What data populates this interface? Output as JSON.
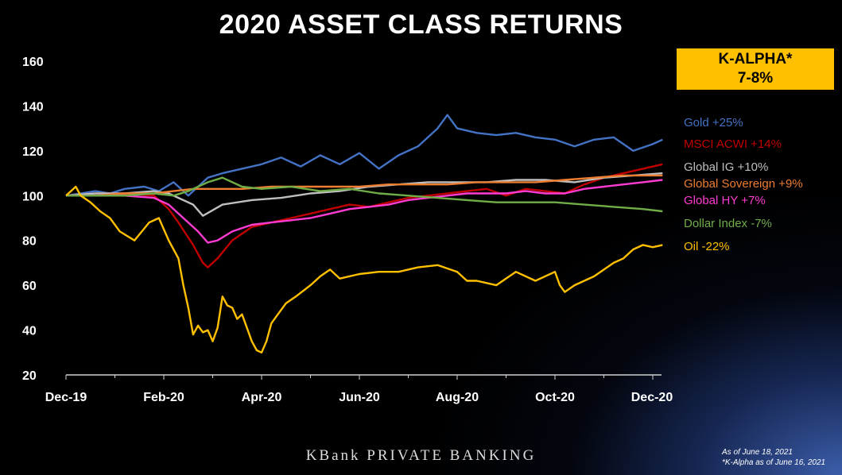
{
  "title": "2020 ASSET CLASS RETURNS",
  "kalpha": {
    "line1": "K-ALPHA*",
    "line2": "7-8%",
    "color": "#FFC000"
  },
  "footer": {
    "brand": "KBank PRIVATE BANKING",
    "note1": "As of June 18, 2021",
    "note2": "*K-Alpha as of June 16, 2021"
  },
  "chart_data": {
    "type": "line",
    "title": "2020 ASSET CLASS RETURNS",
    "xlabel": "",
    "ylabel": "",
    "x_ticks": [
      "Dec-19",
      "Feb-20",
      "Apr-20",
      "Jun-20",
      "Aug-20",
      "Oct-20",
      "Dec-20"
    ],
    "ylim": [
      20,
      160
    ],
    "y_ticks": [
      20,
      40,
      60,
      80,
      100,
      120,
      140,
      160
    ],
    "grid": false,
    "legend_position": "right",
    "series": [
      {
        "name": "Gold +25%",
        "color": "#4472C4",
        "x": [
          0,
          0.15,
          0.3,
          0.45,
          0.6,
          0.8,
          0.95,
          1.1,
          1.25,
          1.45,
          1.6,
          1.8,
          2,
          2.2,
          2.4,
          2.6,
          2.8,
          3,
          3.2,
          3.4,
          3.6,
          3.8,
          3.9,
          4,
          4.2,
          4.4,
          4.6,
          4.8,
          5,
          5.2,
          5.4,
          5.6,
          5.8,
          6,
          6.1
        ],
        "y": [
          100,
          101,
          102,
          101,
          103,
          104,
          102,
          106,
          100,
          108,
          110,
          112,
          114,
          117,
          113,
          118,
          114,
          119,
          112,
          118,
          122,
          130,
          136,
          130,
          128,
          127,
          128,
          126,
          125,
          122,
          125,
          126,
          120,
          123,
          125
        ]
      },
      {
        "name": "MSCI ACWI +14%",
        "color": "#C00000",
        "x": [
          0,
          0.3,
          0.6,
          0.9,
          1.05,
          1.15,
          1.3,
          1.4,
          1.45,
          1.55,
          1.7,
          1.9,
          2.1,
          2.3,
          2.5,
          2.7,
          2.9,
          3.1,
          3.3,
          3.5,
          3.7,
          3.9,
          4.1,
          4.3,
          4.5,
          4.7,
          4.9,
          5.1,
          5.3,
          5.5,
          5.7,
          5.9,
          6.1
        ],
        "y": [
          100,
          101,
          101,
          100,
          94,
          88,
          78,
          70,
          68,
          72,
          80,
          86,
          88,
          90,
          92,
          94,
          96,
          95,
          97,
          99,
          100,
          101,
          102,
          103,
          100,
          103,
          102,
          101,
          105,
          108,
          110,
          112,
          114
        ]
      },
      {
        "name": "Global IG +10%",
        "color": "#BFBFBF",
        "x": [
          0,
          0.3,
          0.6,
          0.9,
          1.05,
          1.15,
          1.3,
          1.4,
          1.6,
          1.9,
          2.2,
          2.5,
          2.8,
          3.1,
          3.4,
          3.7,
          4,
          4.3,
          4.6,
          4.9,
          5.2,
          5.5,
          5.8,
          6.1
        ],
        "y": [
          100,
          101,
          101,
          102,
          101,
          99,
          96,
          91,
          96,
          98,
          99,
          101,
          102,
          104,
          105,
          106,
          106,
          106,
          107,
          107,
          106,
          108,
          109,
          110
        ]
      },
      {
        "name": "Global Sovereign +9%",
        "color": "#ED7D31",
        "x": [
          0,
          0.3,
          0.6,
          0.9,
          1.1,
          1.3,
          1.5,
          1.8,
          2.1,
          2.4,
          2.7,
          3,
          3.3,
          3.6,
          3.9,
          4.2,
          4.5,
          4.8,
          5.1,
          5.4,
          5.7,
          6.1
        ],
        "y": [
          100,
          100,
          101,
          101,
          102,
          103,
          103,
          103,
          104,
          104,
          104,
          104,
          105,
          105,
          105,
          106,
          106,
          106,
          107,
          108,
          109,
          109
        ]
      },
      {
        "name": "Global HY +7%",
        "color": "#FF3CD2",
        "x": [
          0,
          0.3,
          0.6,
          0.9,
          1.05,
          1.2,
          1.35,
          1.45,
          1.55,
          1.7,
          1.9,
          2.1,
          2.3,
          2.5,
          2.7,
          2.9,
          3.1,
          3.3,
          3.5,
          3.7,
          3.9,
          4.1,
          4.3,
          4.5,
          4.7,
          4.9,
          5.1,
          5.3,
          5.5,
          5.7,
          5.9,
          6.1
        ],
        "y": [
          100,
          100,
          100,
          99,
          96,
          90,
          84,
          79,
          80,
          84,
          87,
          88,
          89,
          90,
          92,
          94,
          95,
          96,
          98,
          99,
          100,
          101,
          101,
          101,
          102,
          101,
          101,
          103,
          104,
          105,
          106,
          107
        ]
      },
      {
        "name": "Dollar Index -7%",
        "color": "#70AD47",
        "x": [
          0,
          0.3,
          0.6,
          0.9,
          1.1,
          1.25,
          1.35,
          1.45,
          1.6,
          1.8,
          2,
          2.3,
          2.6,
          2.9,
          3.2,
          3.5,
          3.8,
          4.1,
          4.4,
          4.7,
          5,
          5.3,
          5.6,
          5.9,
          6.1
        ],
        "y": [
          100,
          100,
          100,
          101,
          100,
          102,
          104,
          106,
          108,
          104,
          103,
          104,
          102,
          103,
          101,
          100,
          99,
          98,
          97,
          97,
          97,
          96,
          95,
          94,
          93
        ]
      },
      {
        "name": "Oil -22%",
        "color": "#FFC000",
        "x": [
          0,
          0.05,
          0.1,
          0.15,
          0.25,
          0.35,
          0.45,
          0.55,
          0.7,
          0.85,
          0.95,
          1.0,
          1.05,
          1.1,
          1.15,
          1.2,
          1.25,
          1.3,
          1.35,
          1.4,
          1.45,
          1.5,
          1.55,
          1.6,
          1.65,
          1.7,
          1.75,
          1.8,
          1.85,
          1.9,
          1.95,
          2.0,
          2.05,
          2.1,
          2.15,
          2.25,
          2.35,
          2.5,
          2.6,
          2.7,
          2.8,
          3.0,
          3.2,
          3.4,
          3.6,
          3.8,
          4.0,
          4.1,
          4.2,
          4.4,
          4.6,
          4.8,
          5.0,
          5.05,
          5.1,
          5.2,
          5.3,
          5.4,
          5.5,
          5.6,
          5.7,
          5.8,
          5.9,
          6.0,
          6.1
        ],
        "y": [
          100,
          102,
          104,
          100,
          97,
          93,
          90,
          84,
          80,
          88,
          90,
          85,
          80,
          76,
          72,
          60,
          50,
          38,
          42,
          39,
          40,
          35,
          41,
          55,
          51,
          50,
          45,
          47,
          41,
          35,
          31,
          30,
          35,
          43,
          46,
          52,
          55,
          60,
          64,
          67,
          63,
          65,
          66,
          66,
          68,
          69,
          66,
          62,
          62,
          60,
          66,
          62,
          66,
          60,
          57,
          60,
          62,
          64,
          67,
          70,
          72,
          76,
          78,
          77,
          78
        ]
      }
    ]
  }
}
